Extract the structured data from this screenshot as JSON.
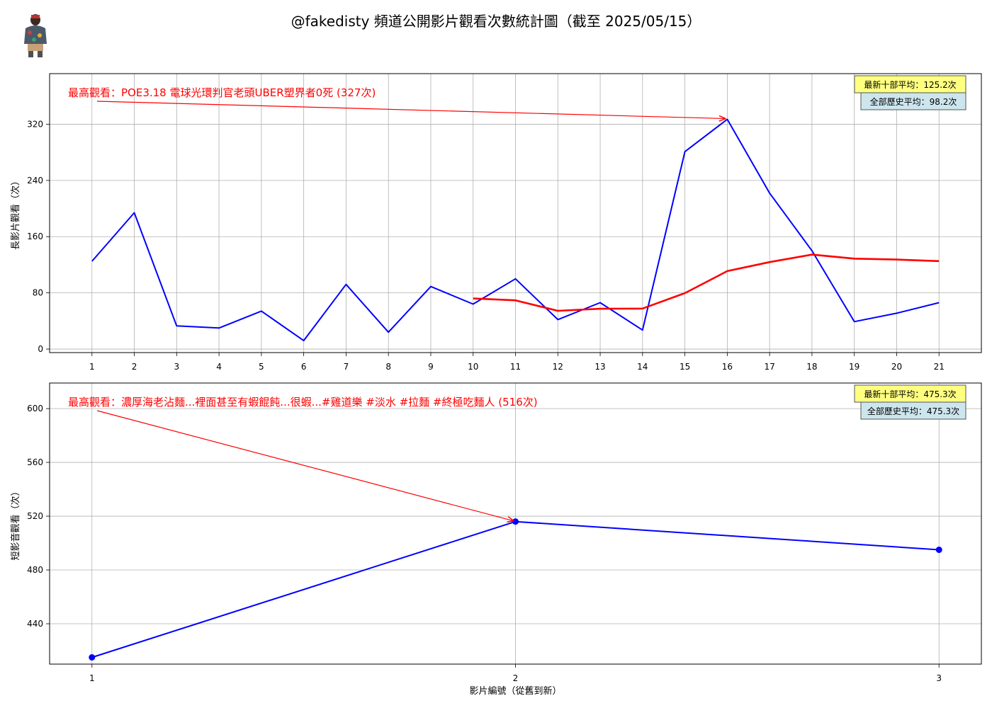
{
  "title": "@fakedisty 頻道公開影片觀看次數統計圖（截至 2025/05/15）",
  "colors": {
    "series": "#0000ff",
    "moving_avg": "#ff0000",
    "annotation": "#ff0000",
    "recent_box": "#ffff80",
    "history_box": "#cde6ee",
    "grid": "#b0b0b0"
  },
  "chart_data": [
    {
      "type": "line",
      "name": "long",
      "x": [
        1,
        2,
        3,
        4,
        5,
        6,
        7,
        8,
        9,
        10,
        11,
        12,
        13,
        14,
        15,
        16,
        17,
        18,
        19,
        20,
        21
      ],
      "series": [
        {
          "values": [
            125,
            194,
            33,
            30,
            54,
            12,
            92,
            24,
            89,
            64,
            100,
            42,
            66,
            27,
            281,
            327,
            222,
            140,
            39,
            51,
            66
          ],
          "color": "#0000ff",
          "markers": false
        },
        {
          "x": [
            10,
            11,
            12,
            13,
            14,
            15,
            16,
            17,
            18,
            19,
            20,
            21
          ],
          "values": [
            72.0,
            69.4,
            54.4,
            57.4,
            57.7,
            79.6,
            111.0,
            123.8,
            134.5,
            128.7,
            127.4,
            125.2
          ],
          "color": "#ff0000",
          "markers": false
        }
      ],
      "xlabel": "",
      "ylabel": "長影片觀看（次）",
      "xticks": [
        "1",
        "2",
        "3",
        "4",
        "5",
        "6",
        "7",
        "8",
        "9",
        "10",
        "11",
        "12",
        "13",
        "14",
        "15",
        "16",
        "17",
        "18",
        "19",
        "20",
        "21"
      ],
      "yticks": [
        "0",
        "80",
        "160",
        "240",
        "320"
      ],
      "xlim": [
        0.0,
        22.0
      ],
      "ylim": [
        -5,
        392
      ],
      "grid": true,
      "annotation": {
        "text": "最高觀看：POE3.18 電球光環判官老頭UBER塑界者0死 (327次)",
        "target_x": 16,
        "target_y": 327
      },
      "stat_boxes": [
        {
          "text": "最新十部平均：125.2次",
          "kind": "recent"
        },
        {
          "text": "全部歷史平均：98.2次",
          "kind": "history"
        }
      ]
    },
    {
      "type": "line",
      "name": "short",
      "x": [
        1,
        2,
        3
      ],
      "series": [
        {
          "values": [
            415,
            516,
            495
          ],
          "color": "#0000ff",
          "markers": true
        }
      ],
      "xlabel": "影片編號（從舊到新）",
      "ylabel": "短影音觀看（次）",
      "xticks": [
        "1",
        "2",
        "3"
      ],
      "yticks": [
        "440",
        "480",
        "520",
        "560",
        "600"
      ],
      "xlim": [
        0.9,
        3.1
      ],
      "ylim": [
        410,
        619
      ],
      "grid": true,
      "annotation": {
        "text": "最高觀看：濃厚海老沾麵...裡面甚至有蝦餛飩...很蝦...#雞道樂 #淡水 #拉麵 #終極吃麵人 (516次)",
        "target_x": 2,
        "target_y": 516
      },
      "stat_boxes": [
        {
          "text": "最新十部平均：475.3次",
          "kind": "recent"
        },
        {
          "text": "全部歷史平均：475.3次",
          "kind": "history"
        }
      ]
    }
  ]
}
